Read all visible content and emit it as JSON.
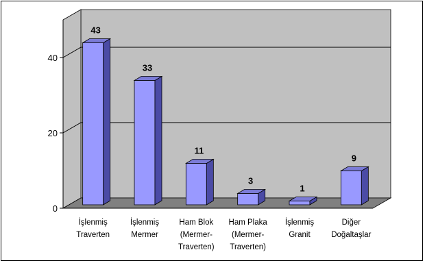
{
  "chart_data": {
    "type": "bar",
    "three_d": true,
    "categories": [
      [
        "İşlenmiş",
        "Traverten"
      ],
      [
        "İşlenmiş",
        "Mermer"
      ],
      [
        "Ham Blok",
        "(Mermer-",
        "Traverten)"
      ],
      [
        "Ham Plaka",
        "(Mermer-",
        "Traverten)"
      ],
      [
        "İşlenmiş",
        "Granit"
      ],
      [
        "Diğer",
        "Doğaltaşlar"
      ]
    ],
    "values": [
      43,
      33,
      11,
      3,
      1,
      9
    ],
    "data_labels": [
      "43",
      "33",
      "11",
      "3",
      "1",
      "9"
    ],
    "yticks": [
      0,
      20,
      40
    ],
    "ylim": [
      0,
      50
    ],
    "gridlines": [
      20,
      40
    ],
    "legend": "none",
    "colors": {
      "bar_front": "#9999ff",
      "bar_side": "#4b4ba6",
      "bar_top": "#7b7bd6",
      "wall": "#c0c0c0",
      "floor": "#808080",
      "grid": "#000000"
    }
  }
}
